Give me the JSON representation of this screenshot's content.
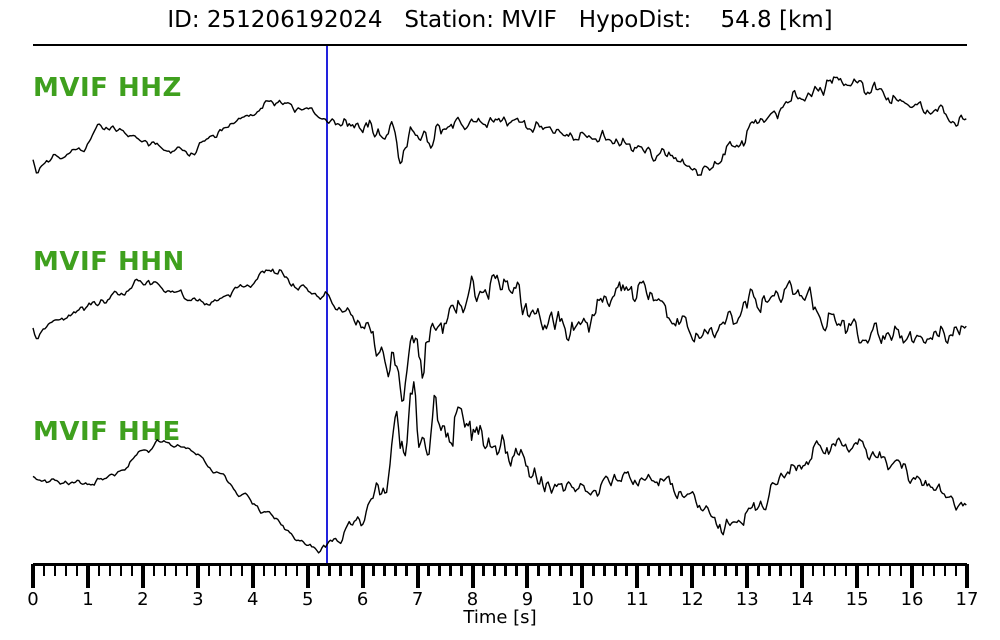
{
  "header": {
    "id": "251206192024",
    "station": "MVIF",
    "hypo_dist_km": 54.8,
    "dist_unit": "[km]"
  },
  "chart_data": {
    "type": "line",
    "title": "ID: 251206192024   Station: MVIF   HypoDist:    54.8 [km]",
    "xlabel": "Time [s]",
    "x_range": [
      0,
      17
    ],
    "x_tick_labels": [
      "0",
      "1",
      "2",
      "3",
      "4",
      "5",
      "6",
      "7",
      "8",
      "9",
      "10",
      "11",
      "12",
      "13",
      "14",
      "15",
      "16",
      "17"
    ],
    "x_minor_step": 0.2,
    "grid": false,
    "legend": "none",
    "pick_time_s": 5.35,
    "colors": {
      "trace": "#000000",
      "pick_line": "#2222dd",
      "channel_label": "#3fa01e",
      "axis": "#000000",
      "background": "#ffffff"
    },
    "traces": [
      {
        "label": "MVIF HHZ",
        "wander": [
          [
            0,
            148
          ],
          [
            0.15,
            162
          ],
          [
            0.5,
            157
          ],
          [
            0.9,
            148
          ],
          [
            1.25,
            126
          ],
          [
            1.6,
            131
          ],
          [
            2.0,
            141
          ],
          [
            2.45,
            150
          ],
          [
            2.85,
            153
          ],
          [
            3.3,
            134
          ],
          [
            3.8,
            118
          ],
          [
            4.4,
            102
          ],
          [
            4.9,
            108
          ],
          [
            5.35,
            120
          ],
          [
            5.8,
            127
          ],
          [
            6.3,
            131
          ],
          [
            6.8,
            137
          ],
          [
            7.3,
            128
          ],
          [
            8.0,
            123
          ],
          [
            8.5,
            120
          ],
          [
            9.2,
            128
          ],
          [
            10.0,
            136
          ],
          [
            10.8,
            144
          ],
          [
            11.5,
            155
          ],
          [
            12.2,
            172
          ],
          [
            12.8,
            145
          ],
          [
            13.3,
            118
          ],
          [
            14.0,
            94
          ],
          [
            14.6,
            82
          ],
          [
            15.2,
            88
          ],
          [
            15.8,
            100
          ],
          [
            16.4,
            110
          ],
          [
            17,
            122
          ]
        ],
        "envelope": [
          [
            0,
            3
          ],
          [
            5.2,
            3.5
          ],
          [
            5.6,
            7
          ],
          [
            6.5,
            9
          ],
          [
            7.5,
            8
          ],
          [
            8.5,
            6
          ],
          [
            10,
            6
          ],
          [
            12,
            6
          ],
          [
            13,
            7
          ],
          [
            14.5,
            7
          ],
          [
            17,
            6
          ]
        ],
        "spikes": [
          [
            0.05,
            20
          ],
          [
            6.7,
            28
          ],
          [
            7.25,
            20
          ]
        ]
      },
      {
        "label": "MVIF HHN",
        "wander": [
          [
            0,
            316
          ],
          [
            0.2,
            327
          ],
          [
            0.6,
            318
          ],
          [
            1.0,
            306
          ],
          [
            1.5,
            296
          ],
          [
            2.0,
            281
          ],
          [
            2.6,
            293
          ],
          [
            3.1,
            304
          ],
          [
            3.8,
            288
          ],
          [
            4.35,
            270
          ],
          [
            4.9,
            289
          ],
          [
            5.35,
            299
          ],
          [
            5.8,
            316
          ],
          [
            6.2,
            336
          ],
          [
            6.6,
            357
          ],
          [
            7.0,
            344
          ],
          [
            7.5,
            319
          ],
          [
            8.0,
            294
          ],
          [
            8.5,
            281
          ],
          [
            9.3,
            321
          ],
          [
            9.9,
            328
          ],
          [
            10.6,
            291
          ],
          [
            11.2,
            291
          ],
          [
            11.7,
            316
          ],
          [
            12.1,
            338
          ],
          [
            12.7,
            319
          ],
          [
            13.2,
            300
          ],
          [
            14.0,
            292
          ],
          [
            14.4,
            320
          ],
          [
            15.2,
            334
          ],
          [
            16.0,
            337
          ],
          [
            16.5,
            333
          ],
          [
            17,
            329
          ]
        ],
        "envelope": [
          [
            0,
            3.5
          ],
          [
            5.0,
            4
          ],
          [
            5.6,
            6
          ],
          [
            6.3,
            12
          ],
          [
            7.0,
            16
          ],
          [
            8.0,
            13
          ],
          [
            9,
            12
          ],
          [
            11,
            11
          ],
          [
            13,
            11
          ],
          [
            15,
            10
          ],
          [
            17,
            10
          ]
        ],
        "spikes": [
          [
            0.05,
            20
          ],
          [
            6.45,
            30
          ],
          [
            6.75,
            36
          ],
          [
            7.1,
            18
          ]
        ]
      },
      {
        "label": "MVIF HHE",
        "wander": [
          [
            0,
            479
          ],
          [
            0.5,
            482
          ],
          [
            1.0,
            484
          ],
          [
            1.5,
            475
          ],
          [
            2.0,
            452
          ],
          [
            2.35,
            441
          ],
          [
            2.8,
            448
          ],
          [
            3.3,
            470
          ],
          [
            3.8,
            495
          ],
          [
            4.3,
            515
          ],
          [
            4.8,
            538
          ],
          [
            5.15,
            549
          ],
          [
            5.5,
            541
          ],
          [
            5.9,
            520
          ],
          [
            6.3,
            490
          ],
          [
            6.7,
            455
          ],
          [
            7.0,
            432
          ],
          [
            7.4,
            422
          ],
          [
            7.8,
            428
          ],
          [
            8.2,
            436
          ],
          [
            8.7,
            455
          ],
          [
            9.4,
            487
          ],
          [
            10.0,
            489
          ],
          [
            10.7,
            478
          ],
          [
            11.3,
            481
          ],
          [
            11.8,
            492
          ],
          [
            12.6,
            524
          ],
          [
            13.2,
            505
          ],
          [
            13.8,
            470
          ],
          [
            14.4,
            449
          ],
          [
            15.0,
            446
          ],
          [
            15.6,
            460
          ],
          [
            16.2,
            482
          ],
          [
            16.6,
            495
          ],
          [
            17,
            511
          ]
        ],
        "envelope": [
          [
            0,
            2.5
          ],
          [
            4.8,
            3
          ],
          [
            5.6,
            5
          ],
          [
            6.3,
            14
          ],
          [
            6.8,
            26
          ],
          [
            7.5,
            22
          ],
          [
            8.3,
            16
          ],
          [
            9.0,
            11
          ],
          [
            10,
            8
          ],
          [
            12,
            8
          ],
          [
            14,
            9
          ],
          [
            15.5,
            8
          ],
          [
            17,
            7
          ]
        ],
        "spikes": [
          [
            6.62,
            -36
          ],
          [
            6.9,
            -28
          ],
          [
            7.15,
            22
          ]
        ]
      }
    ]
  }
}
